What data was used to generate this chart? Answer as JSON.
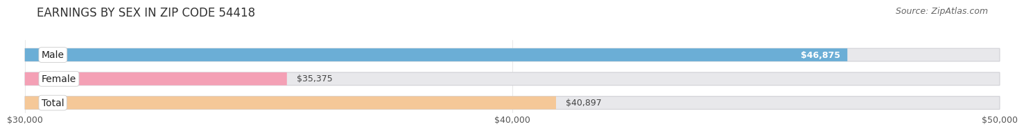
{
  "title": "EARNINGS BY SEX IN ZIP CODE 54418",
  "source": "Source: ZipAtlas.com",
  "categories": [
    "Male",
    "Female",
    "Total"
  ],
  "values": [
    46875,
    35375,
    40897
  ],
  "bar_colors": [
    "#6BAED6",
    "#F4A0B5",
    "#F5C898"
  ],
  "label_inside": [
    true,
    false,
    false
  ],
  "label_text_colors_inside": [
    "white",
    "#555555",
    "#555555"
  ],
  "x_min": 30000,
  "x_max": 50000,
  "x_ticks": [
    30000,
    40000,
    50000
  ],
  "tick_labels": [
    "$30,000",
    "$40,000",
    "$50,000"
  ],
  "background_color": "#ffffff",
  "bar_bg_color": "#e8e8eb",
  "title_fontsize": 12,
  "source_fontsize": 9,
  "label_fontsize": 9,
  "tick_fontsize": 9,
  "category_fontsize": 10
}
